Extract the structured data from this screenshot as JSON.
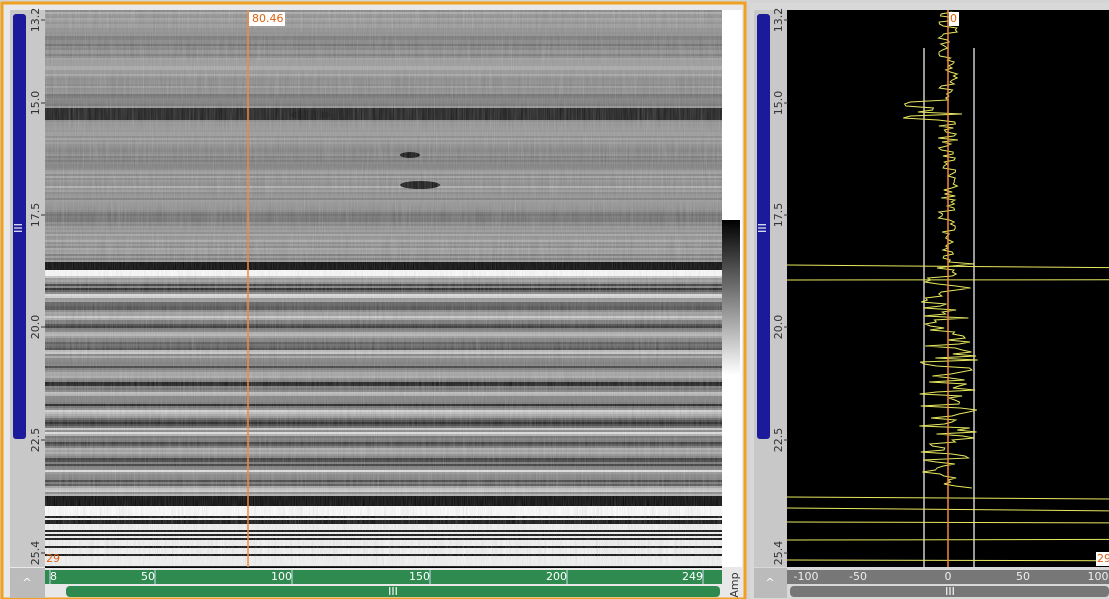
{
  "left_panel": {
    "cursor_label": "80.46",
    "depth_labels": [
      "13.2",
      "15.0",
      "17.5",
      "20.0",
      "22.5",
      "25.4"
    ],
    "corner_label": "29",
    "x_labels": [
      "8",
      "50",
      "100",
      "150",
      "200",
      "249"
    ],
    "amp_label": "Amp",
    "ruler_label": "III",
    "scroll_label": "III"
  },
  "right_panel": {
    "cursor_label": "0",
    "depth_labels": [
      "13.2",
      "15.0",
      "17.5",
      "20.0",
      "22.5",
      "25.4"
    ],
    "corner_label": "29",
    "x_labels": [
      "-100",
      "-50",
      "0",
      "50",
      "100"
    ],
    "ruler_label": "III",
    "scroll_label": "III"
  }
}
